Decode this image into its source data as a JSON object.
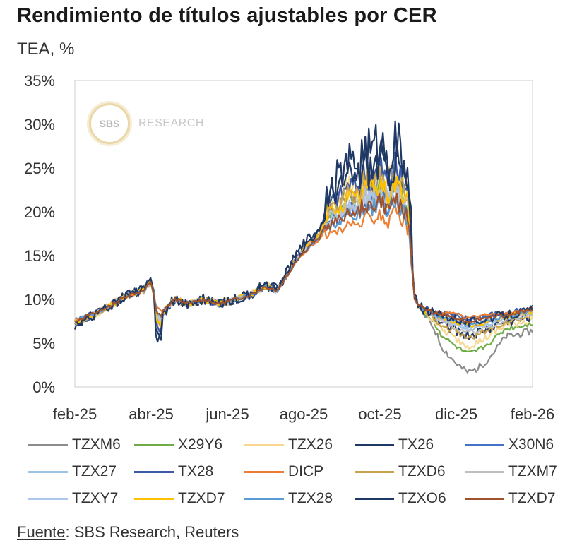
{
  "header": {
    "title": "Rendimiento de títulos ajustables por CER",
    "subtitle": "TEA, %"
  },
  "watermark": {
    "circle_text": "SBS",
    "text": "RESEARCH"
  },
  "footer": {
    "source_label": "Fuente",
    "source_text": ": SBS Research, Reuters"
  },
  "chart_data": {
    "type": "line",
    "title": "Rendimiento de títulos ajustables por CER",
    "ylabel": "TEA, %",
    "xlabel": "",
    "ylim": [
      0,
      35
    ],
    "yticks": [
      0,
      5,
      10,
      15,
      20,
      25,
      30,
      35
    ],
    "ytick_labels": [
      "0%",
      "5%",
      "10%",
      "15%",
      "20%",
      "25%",
      "30%",
      "35%"
    ],
    "xlim": [
      0,
      12
    ],
    "xtick_positions": [
      0,
      2,
      4,
      6,
      8,
      10,
      12
    ],
    "xtick_labels": [
      "feb-25",
      "abr-25",
      "jun-25",
      "ago-25",
      "oct-25",
      "dic-25",
      "feb-26"
    ],
    "base": {
      "x": [
        0,
        0.3,
        0.6,
        1.0,
        1.4,
        1.8,
        2.0,
        2.15,
        2.3,
        2.6,
        3.0,
        3.4,
        3.8,
        4.2,
        4.6,
        4.8,
        5.0,
        5.3,
        5.6,
        5.8,
        6.0,
        6.2,
        6.4,
        6.6,
        6.8,
        7.0,
        7.2,
        7.4,
        7.6,
        7.8,
        8.0,
        8.2,
        8.4,
        8.6,
        8.75,
        8.9,
        9.1,
        9.5,
        10.0,
        10.3,
        10.6,
        11.0,
        11.5,
        12.0
      ],
      "y": [
        7.5,
        8.0,
        8.5,
        9.5,
        10.5,
        11.0,
        12.0,
        9.0,
        8.5,
        10.0,
        9.5,
        10.0,
        9.5,
        10.0,
        10.5,
        11.0,
        11.5,
        11.0,
        13.0,
        14.5,
        15.5,
        16.5,
        17.0,
        19.0,
        19.5,
        20.0,
        21.0,
        20.5,
        22.0,
        21.5,
        22.5,
        21.0,
        22.5,
        21.0,
        20.0,
        10.0,
        9.0,
        8.3,
        7.8,
        7.3,
        7.6,
        8.0,
        8.3,
        8.8
      ]
    },
    "series": [
      {
        "name": "TZXM6",
        "color": "#8c8c8c",
        "scale": 1.1,
        "late_offset": -4.0,
        "wiggle": 1.0
      },
      {
        "name": "X29Y6",
        "color": "#70ad47",
        "scale": 1.05,
        "late_offset": -2.5,
        "wiggle": 0.7
      },
      {
        "name": "TZX26",
        "color": "#f5d78e",
        "scale": 1.18,
        "late_offset": -1.8,
        "wiggle": 1.2
      },
      {
        "name": "TX26",
        "color": "#1f3864",
        "scale": 1.45,
        "late_offset": -1.0,
        "wiggle": 1.6
      },
      {
        "name": "X30N6",
        "color": "#4472c4",
        "scale": 0.95,
        "late_offset": 0.2,
        "wiggle": 0.6
      },
      {
        "name": "TZX27",
        "color": "#9dc3e6",
        "scale": 1.0,
        "late_offset": -0.6,
        "wiggle": 0.6
      },
      {
        "name": "TX28",
        "color": "#3a5ba8",
        "scale": 1.2,
        "late_offset": 0.3,
        "wiggle": 1.0
      },
      {
        "name": "DICP",
        "color": "#ed7d31",
        "scale": 0.8,
        "late_offset": 0.4,
        "wiggle": 0.4
      },
      {
        "name": "TZXD6",
        "color": "#c9a24d",
        "scale": 1.12,
        "late_offset": -1.2,
        "wiggle": 0.9
      },
      {
        "name": "TZXM7",
        "color": "#bfbfbf",
        "scale": 1.02,
        "late_offset": -0.8,
        "wiggle": 0.8
      },
      {
        "name": "TZXY7",
        "color": "#adc6ea",
        "scale": 0.98,
        "late_offset": -0.4,
        "wiggle": 0.6
      },
      {
        "name": "TZXD7",
        "color": "#ffc000",
        "scale": 1.08,
        "late_offset": -0.3,
        "wiggle": 0.8
      },
      {
        "name": "TZX28",
        "color": "#5b9bd5",
        "scale": 0.9,
        "late_offset": -0.2,
        "wiggle": 0.5
      },
      {
        "name": "TZXO6",
        "color": "#203864",
        "scale": 1.3,
        "late_offset": 0.0,
        "wiggle": 1.3
      },
      {
        "name": "TZXD7",
        "color": "#a0522d",
        "scale": 0.92,
        "late_offset": 0.1,
        "wiggle": 0.5
      }
    ]
  }
}
